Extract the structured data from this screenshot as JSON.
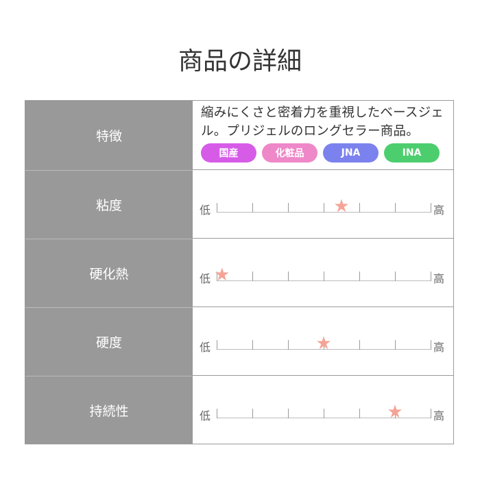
{
  "title": "商品の詳細",
  "rows": [
    {
      "label": "特徴",
      "description": "縮みにくさと密着力を重視したベースジェル。プリジェルのロングセラー商品。",
      "tags": [
        {
          "text": "国産",
          "color": "#d65ce8"
        },
        {
          "text": "化粧品",
          "color": "#ee88c8"
        },
        {
          "text": "JNA",
          "color": "#7b82ee"
        },
        {
          "text": "INA",
          "color": "#4cce6e"
        }
      ]
    },
    {
      "label": "粘度",
      "low": "低",
      "high": "高",
      "value": 3.5,
      "max": 6
    },
    {
      "label": "硬化熱",
      "low": "低",
      "high": "高",
      "value": 0.15,
      "max": 6
    },
    {
      "label": "硬度",
      "low": "低",
      "high": "高",
      "value": 3,
      "max": 6
    },
    {
      "label": "持続性",
      "low": "低",
      "high": "高",
      "value": 5,
      "max": 6
    }
  ],
  "star_color": "#f4a497"
}
